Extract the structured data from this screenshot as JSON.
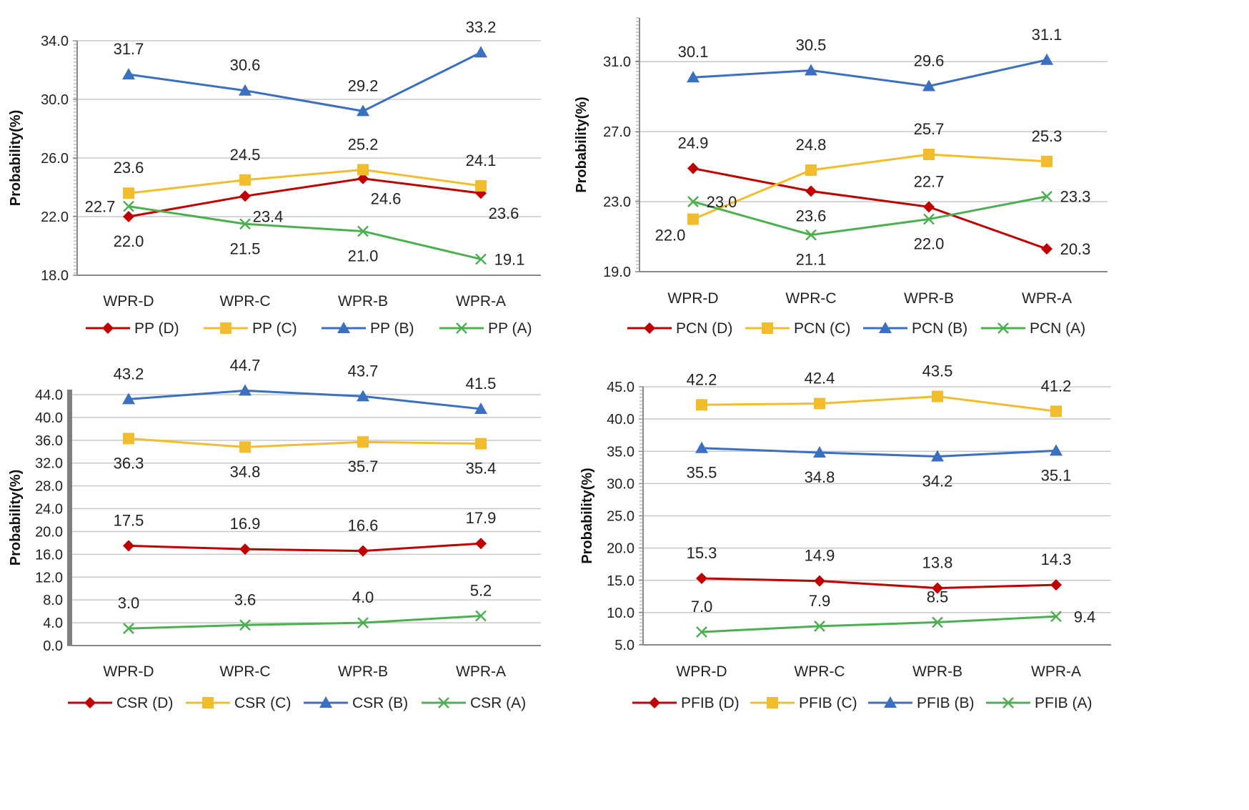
{
  "chart_data": [
    {
      "type": "line",
      "title": "",
      "ylabel": "Probability(%)",
      "categories": [
        "WPR-D",
        "WPR-C",
        "WPR-B",
        "WPR-A"
      ],
      "ylim": [
        18,
        34
      ],
      "yticks": [
        "18.0",
        "22.0",
        "26.0",
        "30.0",
        "34.0"
      ],
      "grid": true,
      "legend": "bottom",
      "series": [
        {
          "name": "PP (D)",
          "color": "#c00000",
          "marker": "diamond",
          "values": [
            22.0,
            23.4,
            24.6,
            23.6
          ],
          "labels": [
            "22.0",
            "23.4",
            "24.6",
            "23.6"
          ]
        },
        {
          "name": "PP (C)",
          "color": "#f2bd2c",
          "marker": "square",
          "values": [
            23.6,
            24.5,
            25.2,
            24.1
          ],
          "labels": [
            "23.6",
            "24.5",
            "25.2",
            "24.1"
          ]
        },
        {
          "name": "PP (B)",
          "color": "#3b70c0",
          "marker": "triangle",
          "values": [
            31.7,
            30.6,
            29.2,
            33.2
          ],
          "labels": [
            "31.7",
            "30.6",
            "29.2",
            "33.2"
          ]
        },
        {
          "name": "PP (A)",
          "color": "#4cb050",
          "marker": "x",
          "values": [
            22.7,
            21.5,
            21.0,
            19.1
          ],
          "labels": [
            "22.7",
            "21.5",
            "21.0",
            "19.1"
          ]
        }
      ]
    },
    {
      "type": "line",
      "title": "",
      "ylabel": "Probability(%)",
      "categories": [
        "WPR-D",
        "WPR-C",
        "WPR-B",
        "WPR-A"
      ],
      "ylim": [
        19,
        33.5
      ],
      "yticks": [
        "19.0",
        "23.0",
        "27.0",
        "31.0"
      ],
      "grid": true,
      "legend": "bottom",
      "series": [
        {
          "name": "PCN (D)",
          "color": "#c00000",
          "marker": "diamond",
          "values": [
            24.9,
            23.6,
            22.7,
            20.3
          ],
          "labels": [
            "24.9",
            "23.6",
            "22.7",
            "20.3"
          ]
        },
        {
          "name": "PCN (C)",
          "color": "#f2bd2c",
          "marker": "square",
          "values": [
            22.0,
            24.8,
            25.7,
            25.3
          ],
          "labels": [
            "22.0",
            "24.8",
            "25.7",
            "25.3"
          ]
        },
        {
          "name": "PCN (B)",
          "color": "#3b70c0",
          "marker": "triangle",
          "values": [
            30.1,
            30.5,
            29.6,
            31.1
          ],
          "labels": [
            "30.1",
            "30.5",
            "29.6",
            "31.1"
          ]
        },
        {
          "name": "PCN (A)",
          "color": "#4cb050",
          "marker": "x",
          "values": [
            23.0,
            21.1,
            22.0,
            23.3
          ],
          "labels": [
            "23.0",
            "21.1",
            "22.0",
            "23.3"
          ]
        }
      ]
    },
    {
      "type": "line",
      "title": "",
      "ylabel": "Probability(%)",
      "categories": [
        "WPR-D",
        "WPR-C",
        "WPR-B",
        "WPR-A"
      ],
      "ylim": [
        0,
        44
      ],
      "yticks": [
        "0.0",
        "4.0",
        "8.0",
        "12.0",
        "16.0",
        "20.0",
        "24.0",
        "28.0",
        "32.0",
        "36.0",
        "40.0",
        "44.0"
      ],
      "grid": true,
      "legend": "bottom",
      "series": [
        {
          "name": "CSR (D)",
          "color": "#c00000",
          "marker": "diamond",
          "values": [
            17.5,
            16.9,
            16.6,
            17.9
          ],
          "labels": [
            "17.5",
            "16.9",
            "16.6",
            "17.9"
          ]
        },
        {
          "name": "CSR (C)",
          "color": "#f2bd2c",
          "marker": "square",
          "values": [
            36.3,
            34.8,
            35.7,
            35.4
          ],
          "labels": [
            "36.3",
            "34.8",
            "35.7",
            "35.4"
          ]
        },
        {
          "name": "CSR (B)",
          "color": "#3b70c0",
          "marker": "triangle",
          "values": [
            43.2,
            44.7,
            43.7,
            41.5
          ],
          "labels": [
            "43.2",
            "44.7",
            "43.7",
            "41.5"
          ]
        },
        {
          "name": "CSR (A)",
          "color": "#4cb050",
          "marker": "x",
          "values": [
            3.0,
            3.6,
            4.0,
            5.2
          ],
          "labels": [
            "3.0",
            "3.6",
            "4.0",
            "5.2"
          ]
        }
      ]
    },
    {
      "type": "line",
      "title": "",
      "ylabel": "Probability(%)",
      "categories": [
        "WPR-D",
        "WPR-C",
        "WPR-B",
        "WPR-A"
      ],
      "ylim": [
        5,
        45
      ],
      "yticks": [
        "5.0",
        "10.0",
        "15.0",
        "20.0",
        "25.0",
        "30.0",
        "35.0",
        "40.0",
        "45.0"
      ],
      "grid": true,
      "legend": "bottom",
      "series": [
        {
          "name": "PFIB (D)",
          "color": "#c00000",
          "marker": "diamond",
          "values": [
            15.3,
            14.9,
            13.8,
            14.3
          ],
          "labels": [
            "15.3",
            "14.9",
            "13.8",
            "14.3"
          ]
        },
        {
          "name": "PFIB (C)",
          "color": "#f2bd2c",
          "marker": "square",
          "values": [
            42.2,
            42.4,
            43.5,
            41.2
          ],
          "labels": [
            "42.2",
            "42.4",
            "43.5",
            "41.2"
          ]
        },
        {
          "name": "PFIB (B)",
          "color": "#3b70c0",
          "marker": "triangle",
          "values": [
            35.5,
            34.8,
            34.2,
            35.1
          ],
          "labels": [
            "35.5",
            "34.8",
            "34.2",
            "35.1"
          ]
        },
        {
          "name": "PFIB (A)",
          "color": "#4cb050",
          "marker": "x",
          "values": [
            7.0,
            7.9,
            8.5,
            9.4
          ],
          "labels": [
            "7.0",
            "7.9",
            "8.5",
            "9.4"
          ]
        }
      ]
    }
  ]
}
